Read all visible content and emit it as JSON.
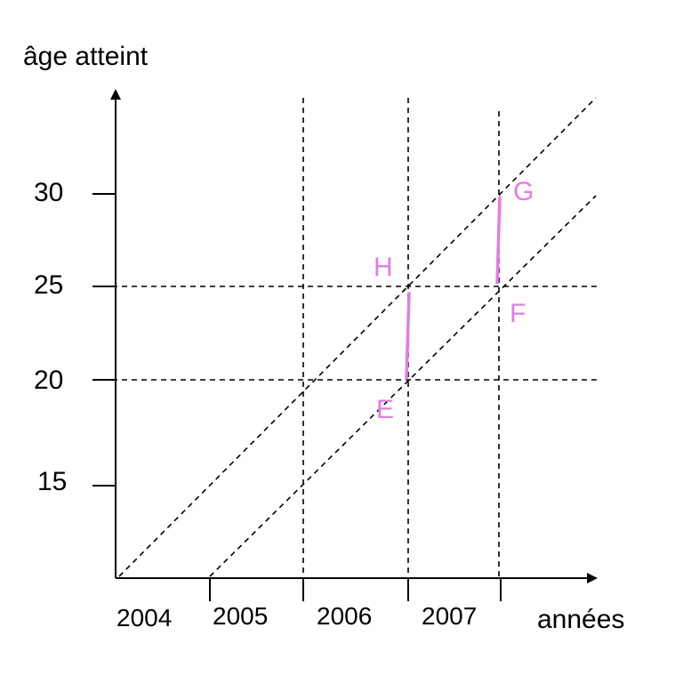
{
  "axes": {
    "y_title": "âge atteint",
    "x_title": "années"
  },
  "y_ticks": [
    {
      "value": 30,
      "label": "30"
    },
    {
      "value": 25,
      "label": "25"
    },
    {
      "value": 20,
      "label": "20"
    },
    {
      "value": 15,
      "label": "15"
    }
  ],
  "x_ticks": [
    {
      "label": "2004"
    },
    {
      "label": "2005"
    },
    {
      "label": "2006"
    },
    {
      "label": "2007"
    }
  ],
  "points": {
    "E": "E",
    "F": "F",
    "G": "G",
    "H": "H"
  },
  "colors": {
    "axes": "#000000",
    "guides": "#000000",
    "highlight": "#e47be6"
  }
}
